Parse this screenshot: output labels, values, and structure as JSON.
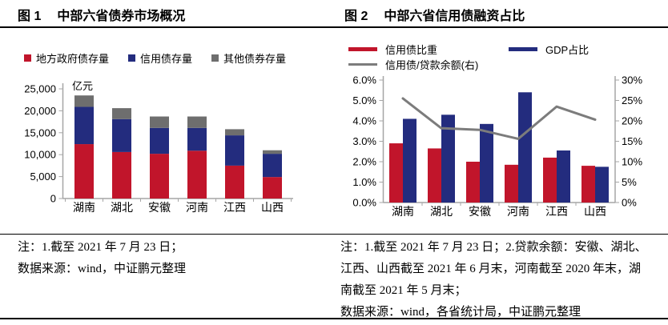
{
  "page": {
    "left_panel": {
      "figure_label": "图 1",
      "title": "中部六省债券市场概况",
      "note_lines": [
        "注：1.截至 2021 年 7 月 23 日；",
        "数据来源：wind，中证鹏元整理"
      ]
    },
    "right_panel": {
      "figure_label": "图 2",
      "title": "中部六省信用债融资占比",
      "note_lines": [
        "注：1.截至 2021 年 7 月 23 日；2.贷款余额：安徽、湖北、",
        "江西、山西截至 2021 年 6 月末，河南截至 2020 年末，湖",
        "南截至 2021 年 5 月末；",
        "数据来源：wind，各省统计局，中证鹏元整理"
      ]
    }
  },
  "chart_data": [
    {
      "type": "bar",
      "stacked": true,
      "title": "中部六省债券市场概况",
      "unit_label": "亿元",
      "categories": [
        "湖南",
        "湖北",
        "安徽",
        "河南",
        "江西",
        "山西"
      ],
      "series": [
        {
          "name": "地方政府债存量",
          "color": "#C1152B",
          "values": [
            12400,
            10600,
            10200,
            10900,
            7500,
            4900
          ]
        },
        {
          "name": "信用债存量",
          "color": "#232C7E",
          "values": [
            8500,
            7500,
            5900,
            5200,
            6900,
            5300
          ]
        },
        {
          "name": "其他债券存量",
          "color": "#6E6E6E",
          "values": [
            2600,
            2500,
            2600,
            2600,
            1400,
            800
          ]
        }
      ],
      "ylim": [
        0,
        25000
      ],
      "ytick_step": 5000,
      "ytick_labels": [
        "0",
        "5,000",
        "10,000",
        "15,000",
        "20,000",
        "25,000"
      ],
      "legend_position": "top",
      "grid": false
    },
    {
      "type": "bar+line",
      "stacked": false,
      "title": "中部六省信用债融资占比",
      "categories": [
        "湖南",
        "湖北",
        "安徽",
        "河南",
        "江西",
        "山西"
      ],
      "bar_series": [
        {
          "name": "信用债比重",
          "color": "#C1152B",
          "axis": "left",
          "values": [
            2.9,
            2.65,
            2.0,
            1.85,
            2.2,
            1.8
          ]
        },
        {
          "name": "GDP占比",
          "color": "#232C7E",
          "axis": "left",
          "values": [
            4.1,
            4.3,
            3.85,
            5.4,
            2.55,
            1.75
          ]
        }
      ],
      "line_series": [
        {
          "name": "信用债/贷款余额(右)",
          "color": "#7C7C7C",
          "axis": "right",
          "values": [
            25.5,
            18.2,
            17.8,
            15.6,
            23.5,
            20.3
          ]
        }
      ],
      "left_axis": {
        "min": 0,
        "max": 6,
        "tick_labels": [
          "0.0%",
          "1.0%",
          "2.0%",
          "3.0%",
          "4.0%",
          "5.0%",
          "6.0%"
        ]
      },
      "right_axis": {
        "min": 0,
        "max": 30,
        "tick_labels": [
          "0%",
          "5%",
          "10%",
          "15%",
          "20%",
          "25%",
          "30%"
        ]
      },
      "legend_position": "top",
      "grid": false
    }
  ],
  "colors": {
    "red": "#C1152B",
    "navy": "#232C7E",
    "gray_bar": "#6E6E6E",
    "gray_line": "#7C7C7C",
    "axis": "#A6A6A6",
    "rule": "#000000"
  }
}
